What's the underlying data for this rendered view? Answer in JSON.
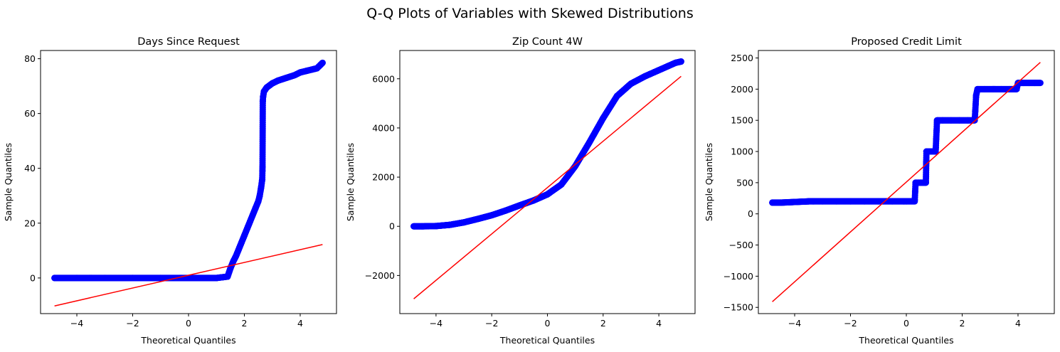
{
  "figure": {
    "suptitle": "Q-Q Plots of Variables with Skewed Distributions"
  },
  "chart_data": [
    {
      "type": "scatter",
      "title": "Days Since Request",
      "xlabel": "Theoretical Quantiles",
      "ylabel": "Sample Quantiles",
      "xlim": [
        -5.3,
        5.3
      ],
      "ylim": [
        -13,
        83
      ],
      "xticks": [
        -4,
        -2,
        0,
        2,
        4
      ],
      "xtick_labels": [
        "−4",
        "−2",
        "0",
        "2",
        "4"
      ],
      "yticks": [
        0,
        20,
        40,
        60,
        80
      ],
      "ytick_labels": [
        "0",
        "20",
        "40",
        "60",
        "80"
      ],
      "grid": false,
      "marker_color": "#0000ff",
      "line_color": "#ff0000",
      "reference_line": {
        "x": [
          -4.8,
          4.8
        ],
        "y": [
          -10.2,
          12.2
        ]
      },
      "series": [
        {
          "x": [
            -4.8,
            -4.0,
            -3.0,
            -2.0,
            -1.0,
            0.0,
            1.0,
            1.4,
            1.5,
            1.6,
            1.7,
            1.8,
            1.9,
            2.0,
            2.1,
            2.2,
            2.3,
            2.4,
            2.5,
            2.55,
            2.6,
            2.64,
            2.65,
            2.66,
            2.67,
            2.7,
            2.8,
            3.0,
            3.2,
            3.5,
            3.8,
            4.0,
            4.2,
            4.4,
            4.6,
            4.8
          ],
          "y": [
            0,
            0,
            0,
            0,
            0,
            0,
            0,
            0.5,
            3.5,
            6,
            8,
            10.5,
            13,
            15.5,
            18,
            20.5,
            23,
            25.5,
            28,
            30,
            33,
            36,
            40.5,
            64.5,
            66,
            68,
            69.5,
            71,
            72,
            73,
            74,
            75,
            75.5,
            76,
            76.5,
            78.5
          ]
        }
      ]
    },
    {
      "type": "scatter",
      "title": "Zip Count 4W",
      "xlabel": "Theoretical Quantiles",
      "ylabel": "Sample Quantiles",
      "xlim": [
        -5.3,
        5.3
      ],
      "ylim": [
        -3550,
        7150
      ],
      "xticks": [
        -4,
        -2,
        0,
        2,
        4
      ],
      "xtick_labels": [
        "−4",
        "−2",
        "0",
        "2",
        "4"
      ],
      "yticks": [
        -2000,
        0,
        2000,
        4000,
        6000
      ],
      "ytick_labels": [
        "−2000",
        "0",
        "2000",
        "4000",
        "6000"
      ],
      "grid": false,
      "marker_color": "#0000ff",
      "line_color": "#ff0000",
      "reference_line": {
        "x": [
          -4.8,
          4.8
        ],
        "y": [
          -2950,
          6100
        ]
      },
      "series": [
        {
          "x": [
            -4.8,
            -4.5,
            -4.0,
            -3.5,
            -3.0,
            -2.5,
            -2.0,
            -1.5,
            -1.0,
            -0.5,
            0.0,
            0.5,
            1.0,
            1.5,
            2.0,
            2.5,
            3.0,
            3.5,
            4.0,
            4.3,
            4.6,
            4.8
          ],
          "y": [
            0,
            0,
            10,
            60,
            160,
            300,
            450,
            640,
            850,
            1050,
            1300,
            1700,
            2450,
            3400,
            4400,
            5300,
            5800,
            6100,
            6350,
            6500,
            6650,
            6700
          ]
        }
      ]
    },
    {
      "type": "scatter",
      "title": "Proposed Credit Limit",
      "xlabel": "Theoretical Quantiles",
      "ylabel": "Sample Quantiles",
      "xlim": [
        -5.3,
        5.3
      ],
      "ylim": [
        -1600,
        2620
      ],
      "xticks": [
        -4,
        -2,
        0,
        2,
        4
      ],
      "xtick_labels": [
        "−4",
        "−2",
        "0",
        "2",
        "4"
      ],
      "yticks": [
        -1500,
        -1000,
        -500,
        0,
        500,
        1000,
        1500,
        2000,
        2500
      ],
      "ytick_labels": [
        "−1500",
        "−1000",
        "−500",
        "0",
        "500",
        "1000",
        "1500",
        "2000",
        "2500"
      ],
      "grid": false,
      "marker_color": "#0000ff",
      "line_color": "#ff0000",
      "reference_line": {
        "x": [
          -4.8,
          4.8
        ],
        "y": [
          -1410,
          2430
        ]
      },
      "series": [
        {
          "x": [
            -4.8,
            -4.5,
            -4.0,
            -3.5,
            -3.0,
            -2.5,
            -2.0,
            -1.5,
            -1.0,
            -0.5,
            0.0,
            0.3,
            0.33,
            0.45,
            0.6,
            0.7,
            0.72,
            0.85,
            1.0,
            1.05,
            1.1,
            1.3,
            1.6,
            1.9,
            2.2,
            2.45,
            2.5,
            2.55,
            2.8,
            3.1,
            3.4,
            3.7,
            3.9,
            3.95,
            4.0,
            4.2,
            4.4,
            4.6,
            4.8
          ],
          "y": [
            180,
            180,
            190,
            200,
            200,
            200,
            200,
            200,
            200,
            200,
            200,
            200,
            500,
            500,
            500,
            500,
            1000,
            1000,
            1000,
            1000,
            1500,
            1500,
            1500,
            1500,
            1500,
            1500,
            1900,
            2000,
            2000,
            2000,
            2000,
            2000,
            2000,
            2000,
            2100,
            2100,
            2100,
            2100,
            2100
          ]
        }
      ]
    }
  ]
}
